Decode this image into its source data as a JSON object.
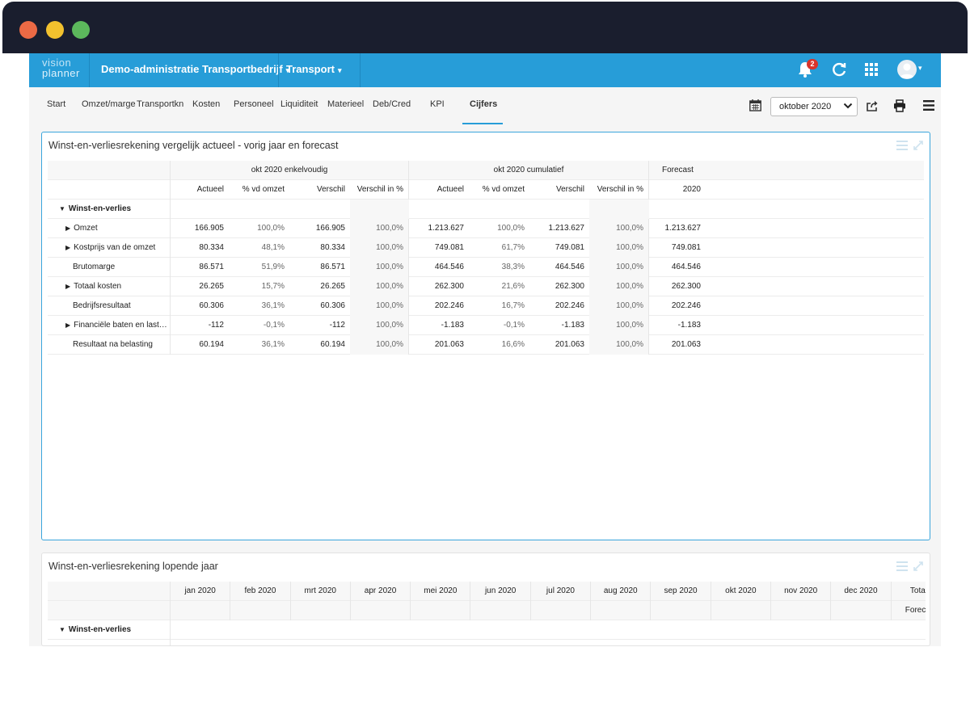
{
  "app": {
    "logo_line1": "vision",
    "logo_line2": "planner",
    "administration": "Demo-administratie Transportbedrijf",
    "module": "Transport",
    "notification_count": "2"
  },
  "nav": {
    "items": [
      "Start",
      "Omzet/marge",
      "Transportkn",
      "Kosten",
      "Personeel",
      "Liquiditeit",
      "Materieel",
      "Deb/Cred",
      "KPI",
      "Cijfers"
    ],
    "active": "Cijfers",
    "period": "oktober 2020"
  },
  "widget1": {
    "title": "Winst-en-verliesrekening vergelijk actueel - vorig jaar en forecast",
    "group_headers": [
      "okt 2020 enkelvoudig",
      "okt 2020 cumulatief",
      "Forecast"
    ],
    "columns": [
      "Actueel",
      "% vd omzet",
      "Verschil",
      "Verschil in %",
      "Actueel",
      "% vd omzet",
      "Verschil",
      "Verschil in %",
      "2020"
    ],
    "group_label": "Winst-en-verlies",
    "rows": [
      {
        "label": "Omzet",
        "expandable": true,
        "values": [
          "166.905",
          "100,0%",
          "166.905",
          "100,0%",
          "1.213.627",
          "100,0%",
          "1.213.627",
          "100,0%",
          "1.213.627"
        ]
      },
      {
        "label": "Kostprijs van de omzet",
        "expandable": true,
        "values": [
          "80.334",
          "48,1%",
          "80.334",
          "100,0%",
          "749.081",
          "61,7%",
          "749.081",
          "100,0%",
          "749.081"
        ]
      },
      {
        "label": "Brutomarge",
        "expandable": false,
        "values": [
          "86.571",
          "51,9%",
          "86.571",
          "100,0%",
          "464.546",
          "38,3%",
          "464.546",
          "100,0%",
          "464.546"
        ]
      },
      {
        "label": "Totaal kosten",
        "expandable": true,
        "values": [
          "26.265",
          "15,7%",
          "26.265",
          "100,0%",
          "262.300",
          "21,6%",
          "262.300",
          "100,0%",
          "262.300"
        ]
      },
      {
        "label": "Bedrijfsresultaat",
        "expandable": false,
        "values": [
          "60.306",
          "36,1%",
          "60.306",
          "100,0%",
          "202.246",
          "16,7%",
          "202.246",
          "100,0%",
          "202.246"
        ]
      },
      {
        "label": "Financiële baten en last…",
        "expandable": true,
        "values": [
          "-112",
          "-0,1%",
          "-112",
          "100,0%",
          "-1.183",
          "-0,1%",
          "-1.183",
          "100,0%",
          "-1.183"
        ]
      },
      {
        "label": "Resultaat na belasting",
        "expandable": false,
        "values": [
          "60.194",
          "36,1%",
          "60.194",
          "100,0%",
          "201.063",
          "16,6%",
          "201.063",
          "100,0%",
          "201.063"
        ]
      }
    ]
  },
  "widget2": {
    "title": "Winst-en-verliesrekening lopende jaar",
    "months": [
      "jan 2020",
      "feb 2020",
      "mrt 2020",
      "apr 2020",
      "mei 2020",
      "jun 2020",
      "jul 2020",
      "aug 2020",
      "sep 2020",
      "okt 2020",
      "nov 2020",
      "dec 2020",
      "Totaal"
    ],
    "sub_header_last": "Forecast",
    "group_label": "Winst-en-verlies"
  },
  "colors": {
    "brand_blue": "#279dd8",
    "titlebar": "#1a1e2e",
    "badge_red": "#d9342b"
  }
}
